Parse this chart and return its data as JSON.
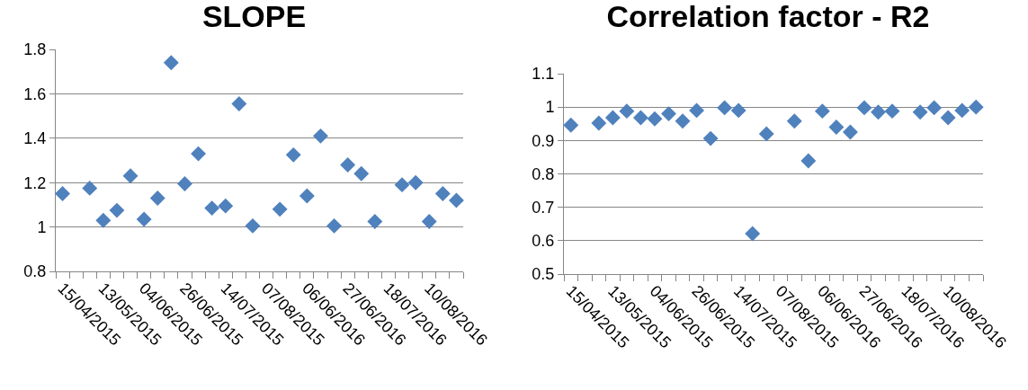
{
  "chart_data": [
    {
      "type": "scatter",
      "title": "SLOPE",
      "categories": [
        "15/04/2015",
        null,
        null,
        "13/05/2015",
        null,
        null,
        "04/06/2015",
        null,
        null,
        "26/06/2015",
        null,
        null,
        "14/07/2015",
        null,
        null,
        "07/08/2015",
        null,
        null,
        "06/06/2016",
        null,
        null,
        "27/06/2016",
        null,
        null,
        "18/07/2016",
        null,
        null,
        "10/08/2016",
        null,
        null
      ],
      "series": [
        {
          "color": "#4f81bd",
          "values": [
            1.15,
            null,
            1.175,
            1.03,
            1.075,
            1.23,
            1.035,
            1.13,
            1.74,
            1.195,
            1.33,
            1.085,
            1.095,
            1.555,
            1.005,
            null,
            1.08,
            1.325,
            1.14,
            1.41,
            1.005,
            1.28,
            1.24,
            1.025,
            null,
            1.19,
            1.2,
            1.025,
            1.15,
            1.12
          ]
        }
      ],
      "ylim": [
        0.8,
        1.8
      ],
      "yticks": [
        0.8,
        1,
        1.2,
        1.4,
        1.6,
        1.8
      ],
      "grid": "y",
      "marker": "diamond"
    },
    {
      "type": "scatter",
      "title": "Correlation factor - R2",
      "categories": [
        "15/04/2015",
        null,
        null,
        "13/05/2015",
        null,
        null,
        "04/06/2015",
        null,
        null,
        "26/06/2015",
        null,
        null,
        "14/07/2015",
        null,
        null,
        "07/08/2015",
        null,
        null,
        "06/06/2016",
        null,
        null,
        "27/06/2016",
        null,
        null,
        "18/07/2016",
        null,
        null,
        "10/08/2016",
        null,
        null
      ],
      "series": [
        {
          "color": "#4f81bd",
          "values": [
            0.946,
            null,
            0.952,
            0.968,
            0.988,
            0.968,
            0.965,
            0.98,
            0.958,
            0.99,
            0.906,
            0.998,
            0.99,
            0.621,
            0.92,
            null,
            0.958,
            0.839,
            0.988,
            0.94,
            0.925,
            0.998,
            0.985,
            0.988,
            null,
            0.985,
            0.998,
            0.968,
            0.99,
            1.0
          ]
        }
      ],
      "ylim": [
        0.5,
        1.1
      ],
      "yticks": [
        0.5,
        0.6,
        0.7,
        0.8,
        0.9,
        1,
        1.1
      ],
      "grid": "y",
      "marker": "diamond"
    }
  ]
}
